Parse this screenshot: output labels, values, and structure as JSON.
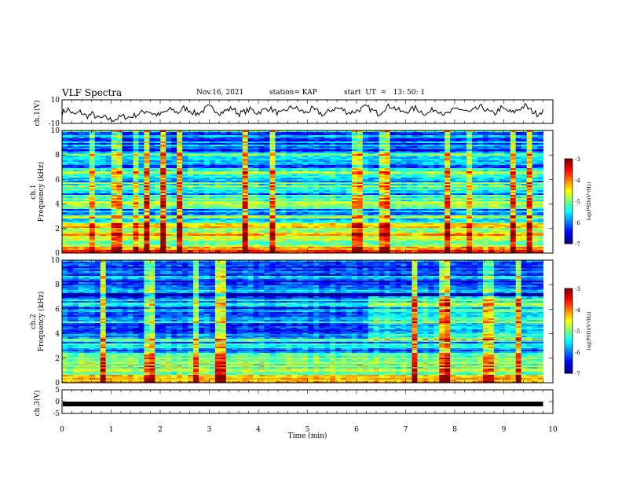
{
  "header": {
    "title": "VLF Spectra",
    "date": "Nov.16, 2021",
    "station": "station= KAP",
    "start_ut": "start  UT  =   13: 50: 1"
  },
  "chart_data": [
    {
      "type": "line",
      "panel": "ch1-waveform",
      "ylabel": "ch.1(V)",
      "ylim": [
        -10,
        10
      ],
      "y_ticks": [
        "10",
        "-10"
      ],
      "x_range_min": [
        0,
        9.8
      ],
      "description_values": "noisy waveform oscillating roughly between -8 and 6 V",
      "series": [
        {
          "values": [
            -1,
            2,
            -3,
            0,
            -4,
            -2,
            -6,
            -5,
            -7,
            -6,
            -4,
            -5,
            -3,
            -1,
            1,
            -2,
            -3,
            0,
            2,
            -1,
            3,
            1,
            -2,
            0,
            4,
            2,
            -1,
            1,
            3,
            -2,
            0,
            2,
            -1,
            1,
            3,
            0,
            -2,
            2,
            4,
            1,
            -1,
            2,
            0,
            -3,
            1,
            3,
            2,
            -1,
            0,
            2,
            4,
            1,
            -2,
            3,
            5,
            2,
            -1,
            1,
            3,
            0,
            -2,
            2,
            1,
            -3,
            0,
            3,
            1,
            -1,
            2,
            4,
            0,
            -2,
            3,
            1,
            -1,
            2,
            5,
            1,
            -2,
            1
          ]
        }
      ],
      "line_color": "#000000"
    },
    {
      "type": "heatmap",
      "panel": "ch1-spectrogram",
      "ylabel": "ch.1",
      "ylabel2": "Frequency (kHz)",
      "ylim": [
        0,
        10
      ],
      "y_ticks": [
        "0",
        "2",
        "4",
        "6",
        "8",
        "10"
      ],
      "x_range_min": [
        0,
        9.8
      ],
      "colorbar": {
        "label": "log(PSD)(V²/Hz)",
        "range": [
          -7,
          -3
        ],
        "ticks": [
          "-3",
          "-4",
          "-5",
          "-6",
          "-7"
        ],
        "colormap": "jet"
      },
      "frequency_profile_log_psd": [
        [
          0.0,
          -3.8
        ],
        [
          0.5,
          -4.3
        ],
        [
          1.0,
          -4.8
        ],
        [
          1.5,
          -4.1
        ],
        [
          2.0,
          -4.7
        ],
        [
          2.5,
          -5.0
        ],
        [
          3.0,
          -5.5
        ],
        [
          3.5,
          -5.9
        ],
        [
          4.0,
          -5.1
        ],
        [
          4.5,
          -5.4
        ],
        [
          5.0,
          -6.0
        ],
        [
          5.5,
          -4.9
        ],
        [
          6.0,
          -6.2
        ],
        [
          6.5,
          -4.6
        ],
        [
          7.0,
          -5.8
        ],
        [
          7.5,
          -6.1
        ],
        [
          8.0,
          -5.5
        ],
        [
          8.5,
          -6.4
        ],
        [
          9.0,
          -5.8
        ],
        [
          9.5,
          -6.3
        ],
        [
          10.0,
          -5.6
        ]
      ]
    },
    {
      "type": "heatmap",
      "panel": "ch2-spectrogram",
      "ylabel": "ch.2",
      "ylabel2": "Frequency (kHz)",
      "ylim": [
        0,
        10
      ],
      "y_ticks": [
        "0",
        "2",
        "4",
        "6",
        "8",
        "10"
      ],
      "x_range_min": [
        0,
        9.8
      ],
      "colorbar": {
        "label": "log(PSD)(V²/Hz)",
        "range": [
          -7,
          -3
        ],
        "ticks": [
          "-3",
          "-4",
          "-5",
          "-6",
          "-7"
        ],
        "colormap": "jet"
      },
      "frequency_profile_log_psd": [
        [
          0.0,
          -4.0
        ],
        [
          0.5,
          -4.6
        ],
        [
          1.0,
          -5.0
        ],
        [
          1.5,
          -4.8
        ],
        [
          2.0,
          -5.2
        ],
        [
          2.5,
          -5.6
        ],
        [
          3.0,
          -6.0
        ],
        [
          3.5,
          -5.4
        ],
        [
          4.0,
          -6.6
        ],
        [
          4.5,
          -6.4
        ],
        [
          5.0,
          -5.8
        ],
        [
          5.5,
          -6.5
        ],
        [
          6.0,
          -6.2
        ],
        [
          6.5,
          -5.6
        ],
        [
          7.0,
          -6.5
        ],
        [
          7.5,
          -6.2
        ],
        [
          8.0,
          -6.4
        ],
        [
          8.5,
          -5.9
        ],
        [
          9.0,
          -6.6
        ],
        [
          9.5,
          -6.0
        ],
        [
          10.0,
          -5.9
        ]
      ],
      "brightening_after_min": 6.2
    },
    {
      "type": "line",
      "panel": "ch3-waveform",
      "ylabel": "ch.3(V)",
      "ylim": [
        -5,
        5
      ],
      "y_ticks": [
        "5",
        "0",
        "-5"
      ],
      "x_range_min": [
        0,
        9.8
      ],
      "series": [
        {
          "values": [
            -1,
            -1
          ]
        }
      ],
      "line_color": "#000000",
      "line_note": "thick flat band near -1 V"
    }
  ],
  "x_axis": {
    "label": "Time  (min)",
    "ticks": [
      "0",
      "1",
      "2",
      "3",
      "4",
      "5",
      "6",
      "7",
      "8",
      "9",
      "10"
    ],
    "range": [
      0,
      10
    ]
  }
}
